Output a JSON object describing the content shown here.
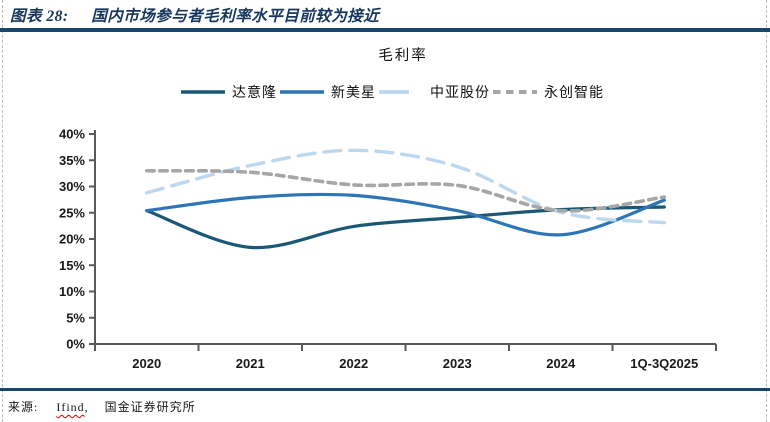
{
  "figure": {
    "label": "图表 28:",
    "title": "国内市场参与者毛利率水平目前较为接近"
  },
  "source": {
    "prefix": "来源:",
    "vendor": "Ifind",
    "separator": ",",
    "institute": "国金证券研究所"
  },
  "colors": {
    "header_text": "#17365D",
    "rule": "#17466B",
    "axis": "#595959",
    "spellcheck_underline": "#cc0000",
    "series_dayilong": "#1A5875",
    "series_xinmeixing": "#2E75B6",
    "series_zhongya": "#BDD7EE",
    "series_yongchuang": "#A6A6A6"
  },
  "chart_data": {
    "type": "line",
    "title": "毛利率",
    "categories": [
      "2020",
      "2021",
      "2022",
      "2023",
      "2024",
      "1Q-3Q2025"
    ],
    "series": [
      {
        "name": "达意隆",
        "color": "#1A5875",
        "style": "solid",
        "values": [
          25.4,
          18.4,
          22.4,
          24.1,
          25.6,
          26.1
        ]
      },
      {
        "name": "新美星",
        "color": "#2E75B6",
        "style": "solid",
        "values": [
          25.4,
          27.9,
          28.3,
          25.4,
          20.8,
          27.4
        ]
      },
      {
        "name": "中亚股份",
        "color": "#BDD7EE",
        "style": "long-dash",
        "values": [
          28.8,
          34.0,
          36.9,
          33.8,
          25.1,
          23.1
        ]
      },
      {
        "name": "永创智能",
        "color": "#A6A6A6",
        "style": "dash",
        "values": [
          33.0,
          32.7,
          30.3,
          30.2,
          25.4,
          28.0
        ]
      }
    ],
    "ylabel": "",
    "xlabel": "",
    "ylim": [
      0,
      40
    ],
    "ytick_step": 5,
    "ytick_format": "percent",
    "grid": false,
    "legend_position": "top",
    "line_shape": "smooth"
  }
}
